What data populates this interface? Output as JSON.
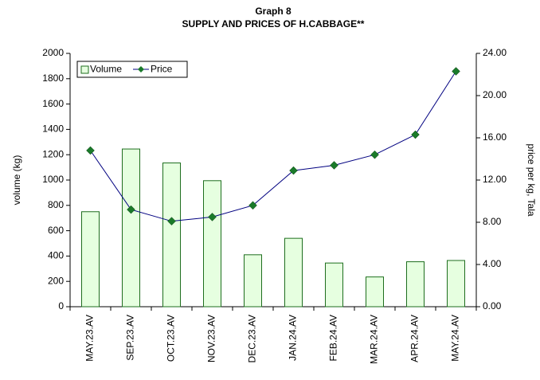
{
  "chart_data": {
    "type": "bar_line",
    "title": "Graph 8",
    "subtitle": "SUPPLY AND PRICES OF H.CABBAGE**",
    "y_label": "volume (kg)",
    "y2_label": "price per kg, Tala",
    "categories": [
      "MAY.23.AV",
      "SEP.23.AV",
      "OCT.23.AV",
      "NOV.23.AV",
      "DEC.23.AV",
      "JAN.24.AV",
      "FEB.24.AV",
      "MAR.24.AV",
      "APR.24.AV",
      "MAY.24.AV"
    ],
    "series": [
      {
        "name": "Volume",
        "type": "bar",
        "color": "#e6ffe0",
        "stroke": "#1e6e1e",
        "values": [
          750,
          1245,
          1135,
          995,
          410,
          540,
          345,
          235,
          355,
          365
        ]
      },
      {
        "name": "Price",
        "type": "line",
        "axis": "y2",
        "color": "#000080",
        "marker_color": "#1a7a2a",
        "values": [
          14.8,
          9.2,
          8.1,
          8.5,
          9.6,
          12.9,
          13.4,
          14.4,
          16.3,
          22.3
        ]
      }
    ],
    "ylim": [
      0,
      2000
    ],
    "yticks": [
      0,
      200,
      400,
      600,
      800,
      1000,
      1200,
      1400,
      1600,
      1800,
      2000
    ],
    "y2lim": [
      0,
      24
    ],
    "y2ticks": [
      {
        "value": 0,
        "label": "0.00"
      },
      {
        "value": 4,
        "label": "4.00"
      },
      {
        "value": 8,
        "label": "8.00"
      },
      {
        "value": 12,
        "label": "12.00"
      },
      {
        "value": 16,
        "label": "16.00"
      },
      {
        "value": 20,
        "label": "20.00"
      },
      {
        "value": 24,
        "label": "24.00"
      }
    ],
    "legend": "top-left"
  }
}
